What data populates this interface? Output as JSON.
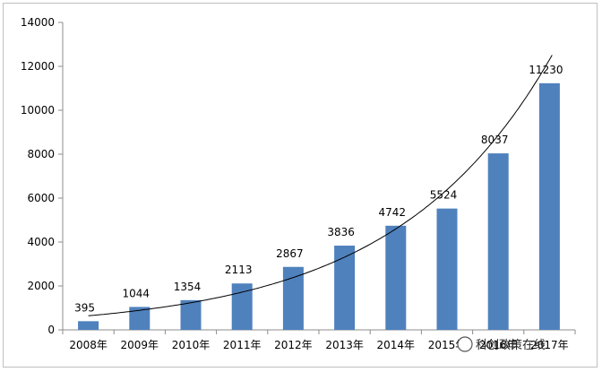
{
  "chart_data": {
    "type": "bar",
    "categories": [
      "2008年",
      "2009年",
      "2010年",
      "2011年",
      "2012年",
      "2013年",
      "2014年",
      "2015年",
      "2016年",
      "2017年"
    ],
    "values": [
      395,
      1044,
      1354,
      2113,
      2867,
      3836,
      4742,
      5524,
      8037,
      11230
    ],
    "data_labels": [
      "395",
      "1044",
      "1354",
      "2113",
      "2867",
      "3836",
      "4742",
      "5524",
      "8037",
      "11230"
    ],
    "ylim": [
      0,
      14000
    ],
    "yticks": [
      0,
      2000,
      4000,
      6000,
      8000,
      10000,
      12000,
      14000
    ],
    "ytick_labels": [
      "0",
      "2000",
      "4000",
      "6000",
      "8000",
      "10000",
      "12000",
      "14000"
    ],
    "trendline": {
      "type": "exponential"
    },
    "bar_color": "#4f81bd",
    "trend_color": "#000000",
    "grid": false,
    "legend": "none",
    "title": "",
    "xlabel": "",
    "ylabel": ""
  },
  "watermark": {
    "text": "科创政策在线"
  }
}
